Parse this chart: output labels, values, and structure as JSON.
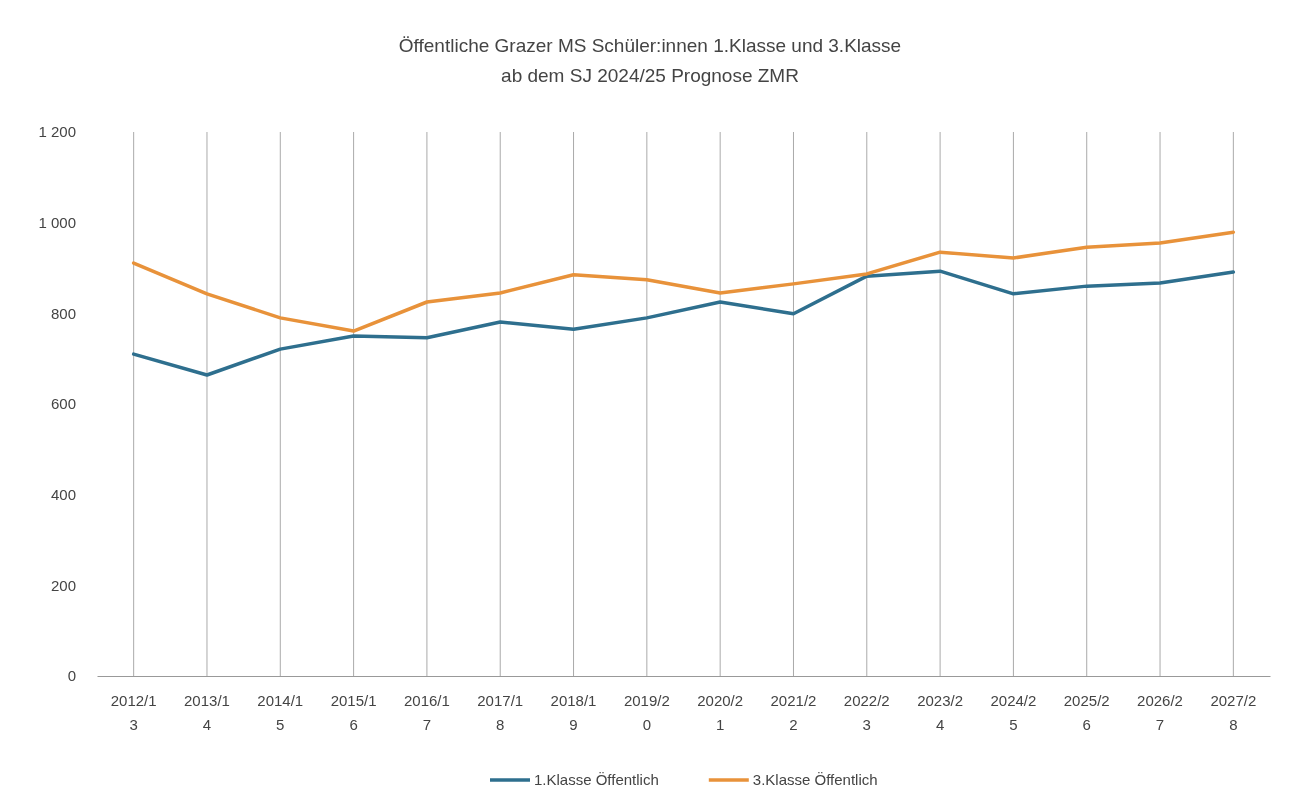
{
  "chart_data": {
    "type": "line",
    "title": "Öffentliche Grazer MS Schüler:innen 1.Klasse und 3.Klasse",
    "subtitle": "ab dem SJ 2024/25 Prognose ZMR",
    "categories": [
      "2012/13",
      "2013/14",
      "2014/15",
      "2015/16",
      "2016/17",
      "2017/18",
      "2018/19",
      "2019/20",
      "2020/21",
      "2021/22",
      "2022/23",
      "2023/24",
      "2024/25",
      "2025/26",
      "2026/27",
      "2027/28"
    ],
    "series": [
      {
        "name": "1.Klasse Öffentlich",
        "color": "#2e6f8e",
        "values": [
          710,
          664,
          721,
          750,
          746,
          781,
          765,
          790,
          825,
          799,
          882,
          893,
          843,
          860,
          867,
          891
        ]
      },
      {
        "name": "3.Klasse Öffentlich",
        "color": "#e8923a",
        "values": [
          911,
          843,
          790,
          761,
          825,
          845,
          885,
          874,
          845,
          865,
          887,
          935,
          922,
          946,
          955,
          979
        ]
      }
    ],
    "ylim": [
      0,
      1200
    ],
    "yticks": [
      0,
      200,
      400,
      600,
      800,
      {
        "value": 1000,
        "label": "1 000"
      },
      {
        "value": 1200,
        "label": "1 200"
      }
    ],
    "grid": "x",
    "legend": "bottom",
    "marker": "none",
    "line_style": "solid"
  }
}
